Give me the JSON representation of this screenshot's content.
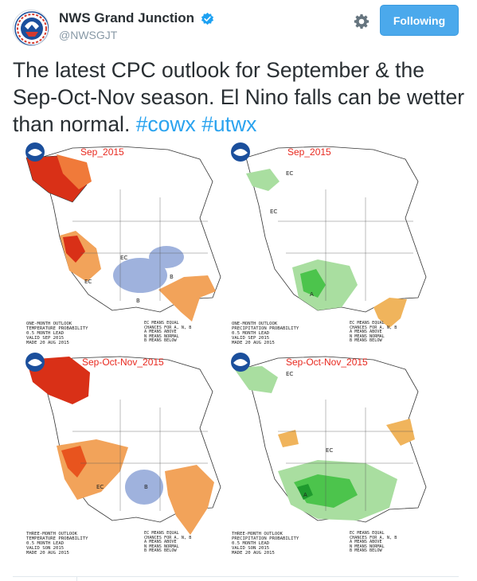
{
  "account": {
    "display_name": "NWS Grand Junction",
    "handle": "@NWSGJT",
    "verified": true,
    "avatar_icon": "nws-logo-icon"
  },
  "actions": {
    "settings_icon": "gear-icon",
    "follow_label": "Following"
  },
  "tweet": {
    "text": "The latest CPC outlook for September & the Sep-Oct-Nov season. El Nino falls can be wetter than normal.",
    "hashtags": [
      "#cowx",
      "#utwx"
    ]
  },
  "maps": [
    {
      "title": "Sep_2015",
      "footer": "ONE-MONTH OUTLOOK\nTEMPERATURE PROBABILITY\n0.5 MONTH LEAD\nVALID SEP 2015\nMADE 20 AUG 2015"
    },
    {
      "title": "Sep_2015",
      "footer": "ONE-MONTH OUTLOOK\nPRECIPITATION PROBABILITY\n0.5 MONTH LEAD\nVALID SEP 2015\nMADE 20 AUG 2015"
    },
    {
      "title": "Sep-Oct-Nov_2015",
      "footer": "THREE-MONTH OUTLOOK\nTEMPERATURE PROBABILITY\n0.5 MONTH LEAD\nVALID SON 2015\nMADE 20 AUG 2015"
    },
    {
      "title": "Sep-Oct-Nov_2015",
      "footer": "THREE-MONTH OUTLOOK\nPRECIPITATION PROBABILITY\n0.5 MONTH LEAD\nVALID SON 2015\nMADE 20 AUG 2015"
    }
  ],
  "map_labels": {
    "ec": "EC",
    "above": "A",
    "below": "B"
  },
  "legend": {
    "lines": "EC MEANS EQUAL\nCHANCES FOR A, N, B\nA MEANS ABOVE\nN MEANS NORMAL\nB MEANS BELOW"
  },
  "colors": {
    "warm": "#e8541e",
    "warm_light": "#f2a35a",
    "cool": "#9fb2dd",
    "wet": "#4cc44c",
    "wet_light": "#a9dea0",
    "dry": "#f0b45c",
    "link": "#2aa3ef",
    "follow": "#4ba9ec"
  }
}
